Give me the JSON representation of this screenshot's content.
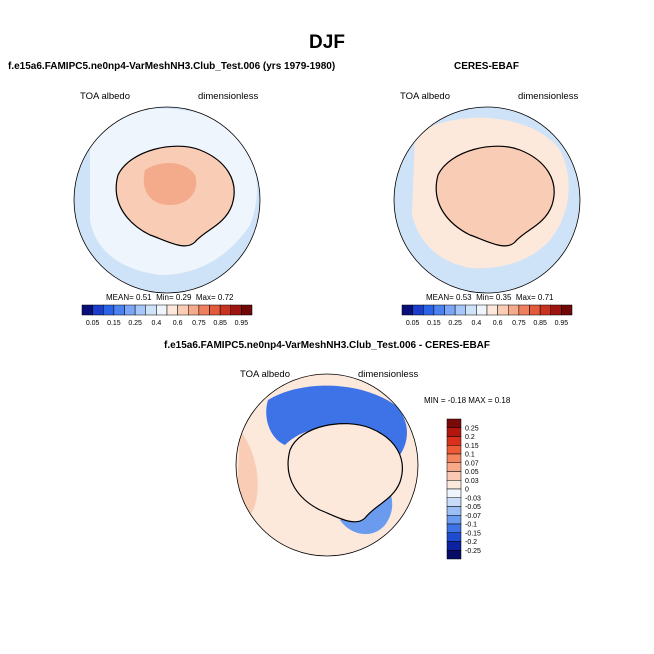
{
  "title": "DJF",
  "colors": {
    "ocean": "#cfe3f8",
    "ocean_mid": "#b6d3f4",
    "land": "#f6c1a3",
    "land_dark": "#f0a88a",
    "coast": "#000000"
  },
  "panels": [
    {
      "title": "f.e15a6.FAMIPC5.ne0np4-VarMeshNH3.Club_Test.006 (yrs 1979-1980)",
      "left_label": "TOA albedo",
      "right_label": "dimensionless",
      "stats": {
        "mean_label": "MEAN=",
        "mean": "0.51",
        "min_label": "Min=",
        "min": "0.29",
        "max_label": "Max=",
        "max": "0.72"
      }
    },
    {
      "title": "CERES-EBAF",
      "left_label": "TOA albedo",
      "right_label": "dimensionless",
      "stats": {
        "mean_label": "MEAN=",
        "mean": "0.53",
        "min_label": "Min=",
        "min": "0.35",
        "max_label": "Max=",
        "max": "0.71"
      }
    }
  ],
  "diff_panel": {
    "title": "f.e15a6.FAMIPC5.ne0np4-VarMeshNH3.Club_Test.006 - CERES-EBAF",
    "left_label": "TOA albedo",
    "right_label": "dimensionless",
    "stats": {
      "min_label": "MIN =",
      "min": "-0.18",
      "max_label": "MAX =",
      "max": "0.18"
    }
  },
  "chart_data": [
    {
      "type": "heatmap",
      "projection": "south-polar-stereographic",
      "colorbar": {
        "orientation": "horizontal",
        "labels": [
          "0.05",
          "0.15",
          "0.25",
          "0.4",
          "0.6",
          "0.75",
          "0.85",
          "0.95"
        ],
        "levels": [
          0.05,
          0.1,
          0.15,
          0.2,
          0.25,
          0.3,
          0.4,
          0.5,
          0.6,
          0.7,
          0.75,
          0.8,
          0.85,
          0.9,
          0.95
        ],
        "colors": [
          "#0a0f7a",
          "#1a3ec9",
          "#2a63e6",
          "#4b82ef",
          "#7aa6f5",
          "#a7c7f9",
          "#cfe3f8",
          "#eef5fd",
          "#fde8dc",
          "#f9cdb5",
          "#f4ab8b",
          "#ee8060",
          "#e35a3a",
          "#c7331e",
          "#a01410",
          "#6f0808"
        ]
      }
    },
    {
      "type": "heatmap",
      "projection": "south-polar-stereographic",
      "colorbar": {
        "orientation": "horizontal",
        "labels": [
          "0.05",
          "0.15",
          "0.25",
          "0.4",
          "0.6",
          "0.75",
          "0.85",
          "0.95"
        ],
        "levels": [
          0.05,
          0.1,
          0.15,
          0.2,
          0.25,
          0.3,
          0.4,
          0.5,
          0.6,
          0.7,
          0.75,
          0.8,
          0.85,
          0.9,
          0.95
        ],
        "colors": [
          "#0a0f7a",
          "#1a3ec9",
          "#2a63e6",
          "#4b82ef",
          "#7aa6f5",
          "#a7c7f9",
          "#cfe3f8",
          "#eef5fd",
          "#fde8dc",
          "#f9cdb5",
          "#f4ab8b",
          "#ee8060",
          "#e35a3a",
          "#c7331e",
          "#a01410",
          "#6f0808"
        ]
      }
    },
    {
      "type": "heatmap",
      "projection": "south-polar-stereographic",
      "colorbar": {
        "orientation": "vertical",
        "labels": [
          "0.25",
          "0.2",
          "0.15",
          "0.1",
          "0.07",
          "0.05",
          "0.03",
          "0",
          "-0.03",
          "-0.05",
          "-0.07",
          "-0.1",
          "-0.15",
          "-0.2",
          "-0.25"
        ],
        "colors": [
          "#7a0a0a",
          "#b3160f",
          "#d8301c",
          "#ec5b36",
          "#f3855f",
          "#f7a989",
          "#fac9b3",
          "#fde8dc",
          "#eef5fd",
          "#c6dcf8",
          "#9bbff4",
          "#6a9bef",
          "#3d73e6",
          "#1f4bd0",
          "#0c22a3",
          "#060b66"
        ]
      }
    }
  ]
}
